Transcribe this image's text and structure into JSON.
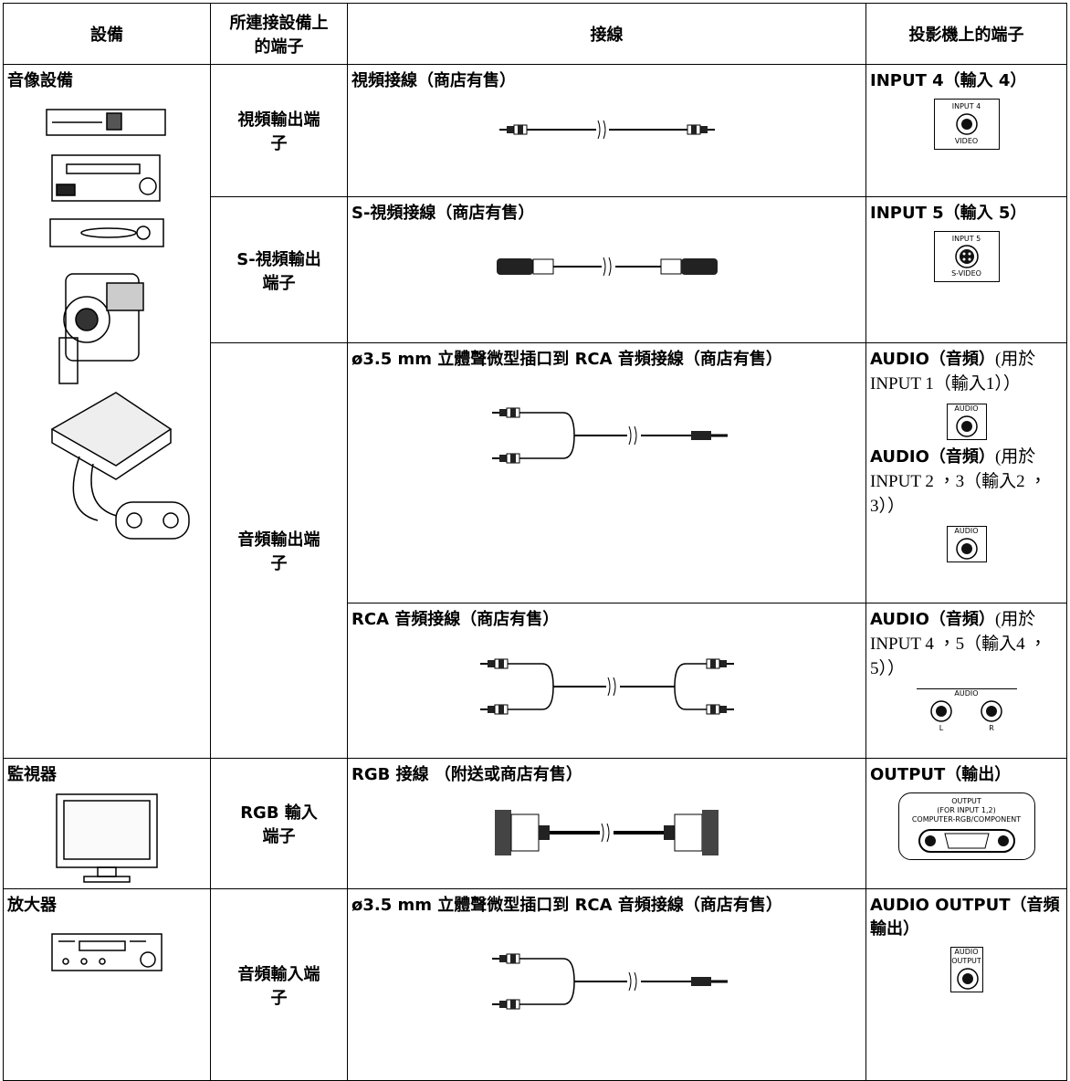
{
  "table": {
    "header": [
      "設備",
      "所連接設備上的端子",
      "接線",
      "投影機上的端子"
    ],
    "devices": [
      "音像設備",
      "監視器",
      "放大器"
    ],
    "device_terminals": [
      "視頻輸出端子",
      "S-視頻輸出端子",
      "音頻輸出端子",
      "RGB 輸入端子",
      "音頻輸入端子"
    ],
    "cables": [
      "視頻接線（商店有售）",
      "S-視頻接線（商店有售）",
      "ø3.5 mm 立體聲微型插口到 RCA 音頻接線（商店有售）",
      "RCA 音頻接線（商店有售）",
      "RGB 接線 （附送或商店有售）",
      "ø3.5 mm 立體聲微型插口到 RCA 音頻接線（商店有售）"
    ],
    "projector_terminals": [
      [
        {
          "label": "INPUT 4（輸入 4）",
          "jack": [
            "INPUT 4",
            "VIDEO"
          ]
        }
      ],
      [
        {
          "label": "INPUT 5（輸入 5）",
          "jack": [
            "INPUT 5",
            "S-VIDEO"
          ]
        }
      ],
      [
        {
          "label": "AUDIO（音頻）",
          "note": "(用於INPUT 1（輸入1））",
          "jack": [
            "AUDIO"
          ]
        },
        {
          "label": "AUDIO（音頻）",
          "note": "(用於INPUT 2 ，3（輸入2 ，3））",
          "jack": [
            "AUDIO"
          ]
        }
      ],
      [
        {
          "label": "AUDIO（音頻）",
          "note": "(用於INPUT 4 ，5（輸入4 ，5））",
          "jack": [
            "AUDIO",
            "L",
            "R"
          ]
        }
      ],
      [
        {
          "label": "OUTPUT（輸出）",
          "jack": [
            "OUTPUT",
            "(FOR INPUT 1,2)",
            "COMPUTER-RGB/COMPONENT"
          ]
        }
      ],
      [
        {
          "label": "AUDIO OUTPUT（音頻輸出）",
          "jack": [
            "AUDIO",
            "OUTPUT"
          ]
        }
      ]
    ]
  }
}
